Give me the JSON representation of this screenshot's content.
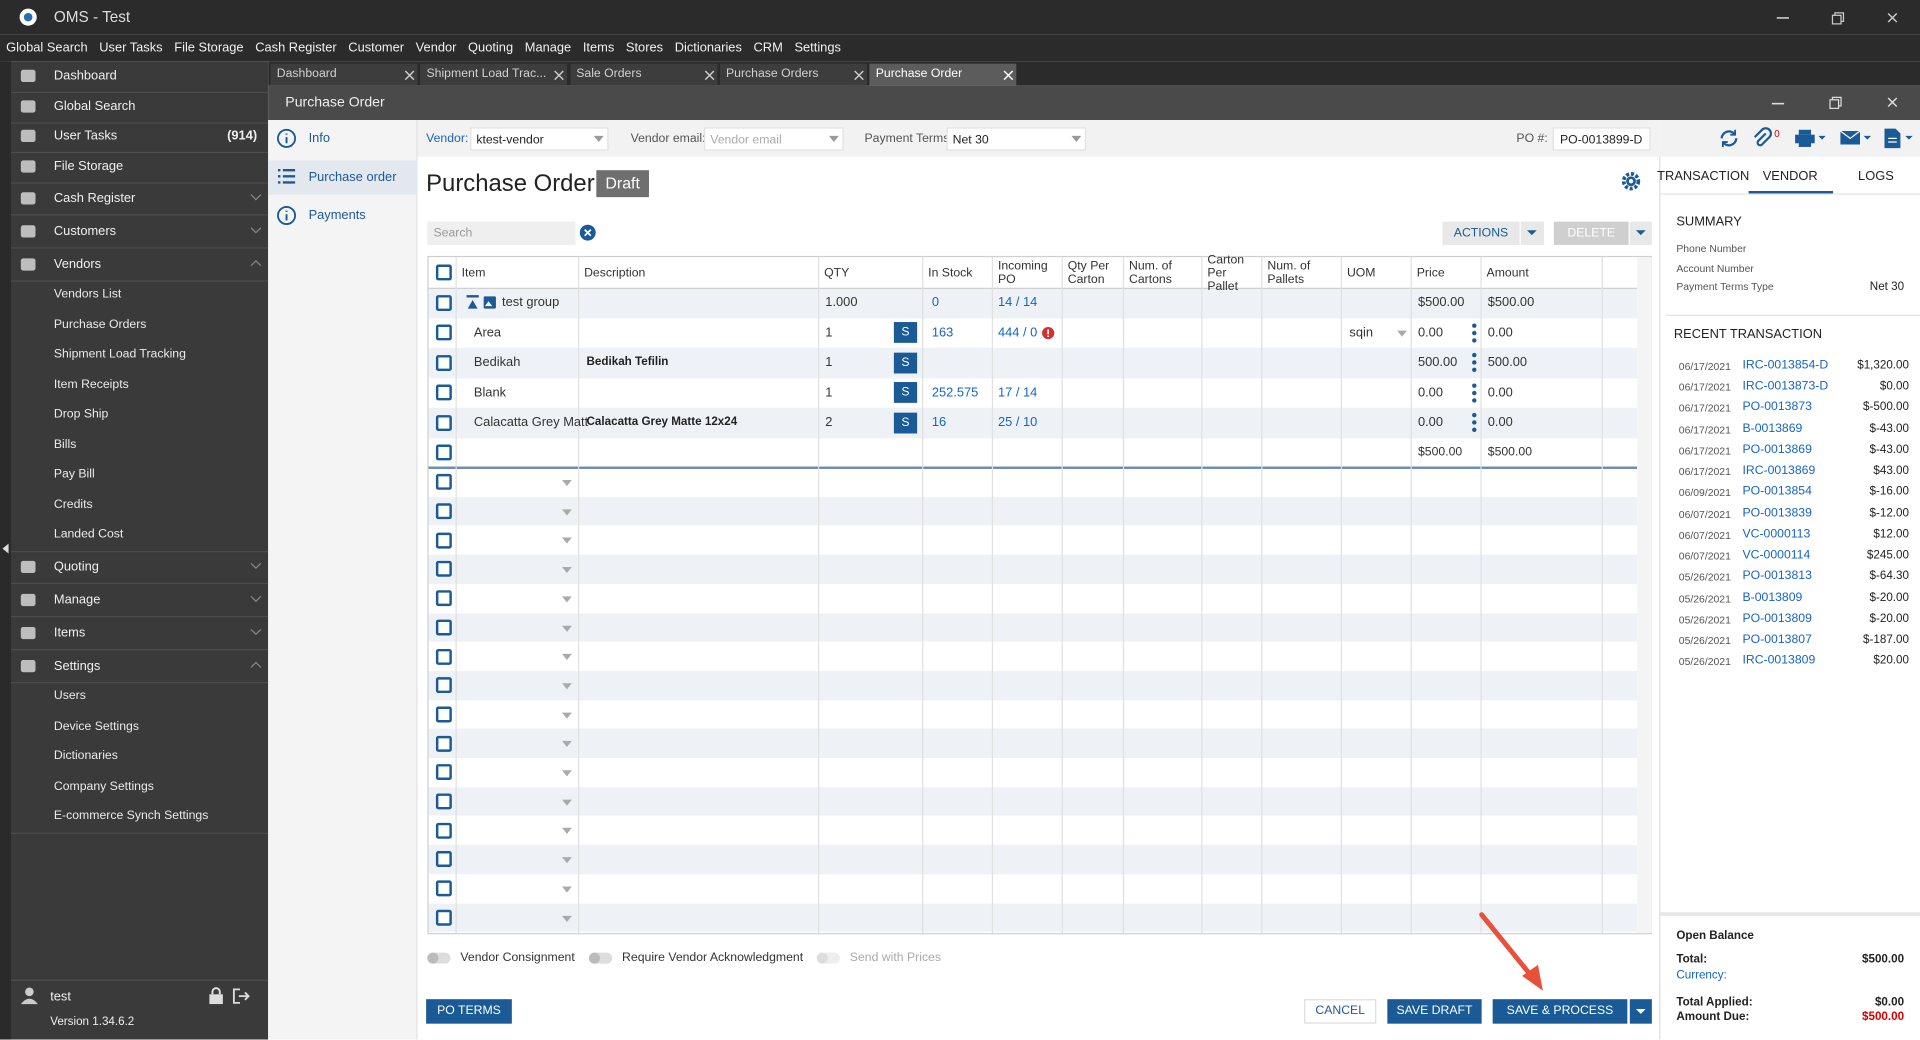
{
  "app": {
    "title": "OMS - Test"
  },
  "menu": [
    "Global Search",
    "User Tasks",
    "File Storage",
    "Cash Register",
    "Customer",
    "Vendor",
    "Quoting",
    "Manage",
    "Items",
    "Stores",
    "Dictionaries",
    "CRM",
    "Settings"
  ],
  "sidebar": {
    "items": [
      {
        "label": "Dashboard"
      },
      {
        "label": "Global Search"
      },
      {
        "label": "User Tasks",
        "badge": "(914)"
      },
      {
        "label": "File Storage"
      },
      {
        "label": "Cash Register"
      },
      {
        "label": "Customers"
      },
      {
        "label": "Vendors",
        "children": [
          "Vendors List",
          "Purchase Orders",
          "Shipment Load Tracking",
          "Item Receipts",
          "Drop Ship",
          "Bills",
          "Pay Bill",
          "Credits",
          "Landed Cost"
        ]
      },
      {
        "label": "Quoting"
      },
      {
        "label": "Manage"
      },
      {
        "label": "Items"
      },
      {
        "label": "Settings",
        "children": [
          "Users",
          "Device Settings",
          "Dictionaries",
          "Company Settings",
          "E-commerce Synch Settings"
        ]
      }
    ],
    "user": "test",
    "version": "Version 1.34.6.2"
  },
  "tabs": [
    "Dashboard",
    "Shipment Load Trac...",
    "Sale Orders",
    "Purchase Orders",
    "Purchase Order"
  ],
  "window": {
    "title": "Purchase Order"
  },
  "nav": [
    "Info",
    "Purchase order",
    "Payments"
  ],
  "form": {
    "vendor_label": "Vendor:",
    "vendor": "ktest-vendor",
    "email_label": "Vendor email:",
    "email_placeholder": "Vendor email",
    "terms_label": "Payment Terms:",
    "terms": "Net 30",
    "po_label": "PO #:",
    "po": "PO-0013899-D"
  },
  "attachments_count": "0",
  "heading": {
    "title": "Purchase Order",
    "status": "Draft"
  },
  "search_placeholder": "Search",
  "buttons": {
    "actions": "ACTIONS",
    "delete": "DELETE",
    "po_terms": "PO TERMS",
    "cancel": "CANCEL",
    "save_draft": "SAVE DRAFT",
    "save_process": "SAVE & PROCESS"
  },
  "table": {
    "columns": [
      "Item",
      "Description",
      "QTY",
      "In Stock",
      "Incoming PO",
      "Qty Per Carton",
      "Num. of Cartons",
      "Carton Per Pallet",
      "Num. of Pallets",
      "UOM",
      "Price",
      "Amount"
    ],
    "rows": [
      {
        "item": "test group",
        "qty": "1.000",
        "in_stock": "0",
        "incoming": "14 / 14",
        "price": "$500.00",
        "amount": "$500.00"
      },
      {
        "item": "Area",
        "qty": "1",
        "s": "S",
        "in_stock": "163",
        "incoming": "444 / 0",
        "uom": "sqin",
        "price": "0.00",
        "amount": "0.00"
      },
      {
        "item": "Bedikah",
        "description": "Bedikah Tefilin",
        "qty": "1",
        "s": "S",
        "price": "500.00",
        "amount": "500.00"
      },
      {
        "item": "Blank",
        "qty": "1",
        "s": "S",
        "in_stock": "252.575",
        "incoming": "17 / 14",
        "price": "0.00",
        "amount": "0.00"
      },
      {
        "item": "Calacatta Grey Matt",
        "description": "Calacatta Grey Matte 12x24",
        "qty": "2",
        "s": "S",
        "in_stock": "16",
        "incoming": "25 / 10",
        "price": "0.00",
        "amount": "0.00"
      }
    ],
    "total": {
      "price": "$500.00",
      "amount": "$500.00"
    }
  },
  "options": [
    "Vendor Consignment",
    "Require Vendor Acknowledgment",
    "Send with Prices"
  ],
  "panel": {
    "tabs": [
      "TRANSACTION",
      "VENDOR",
      "LOGS"
    ],
    "summary_title": "SUMMARY",
    "summary": [
      {
        "label": "Phone Number"
      },
      {
        "label": "Account Number"
      },
      {
        "label": "Payment Terms Type",
        "value": "Net 30"
      }
    ],
    "recent_title": "RECENT TRANSACTION",
    "recent": [
      {
        "date": "06/17/2021",
        "id": "IRC-0013854-D",
        "amount": "$1,320.00"
      },
      {
        "date": "06/17/2021",
        "id": "IRC-0013873-D",
        "amount": "$0.00"
      },
      {
        "date": "06/17/2021",
        "id": "PO-0013873",
        "amount": "$-500.00"
      },
      {
        "date": "06/17/2021",
        "id": "B-0013869",
        "amount": "$-43.00"
      },
      {
        "date": "06/17/2021",
        "id": "PO-0013869",
        "amount": "$-43.00"
      },
      {
        "date": "06/17/2021",
        "id": "IRC-0013869",
        "amount": "$43.00"
      },
      {
        "date": "06/09/2021",
        "id": "PO-0013854",
        "amount": "$-16.00"
      },
      {
        "date": "06/07/2021",
        "id": "PO-0013839",
        "amount": "$-12.00"
      },
      {
        "date": "06/07/2021",
        "id": "VC-0000113",
        "amount": "$12.00"
      },
      {
        "date": "06/07/2021",
        "id": "VC-0000114",
        "amount": "$245.00"
      },
      {
        "date": "05/26/2021",
        "id": "PO-0013813",
        "amount": "$-64.30"
      },
      {
        "date": "05/26/2021",
        "id": "B-0013809",
        "amount": "$-20.00"
      },
      {
        "date": "05/26/2021",
        "id": "PO-0013809",
        "amount": "$-20.00"
      },
      {
        "date": "05/26/2021",
        "id": "PO-0013807",
        "amount": "$-187.00"
      },
      {
        "date": "05/26/2021",
        "id": "IRC-0013809",
        "amount": "$20.00"
      }
    ],
    "balance": {
      "title": "Open Balance",
      "total_label": "Total:",
      "total": "$500.00",
      "currency_label": "Currency:",
      "applied_label": "Total Applied:",
      "applied": "$0.00",
      "due_label": "Amount Due:",
      "due": "$500.00"
    }
  }
}
